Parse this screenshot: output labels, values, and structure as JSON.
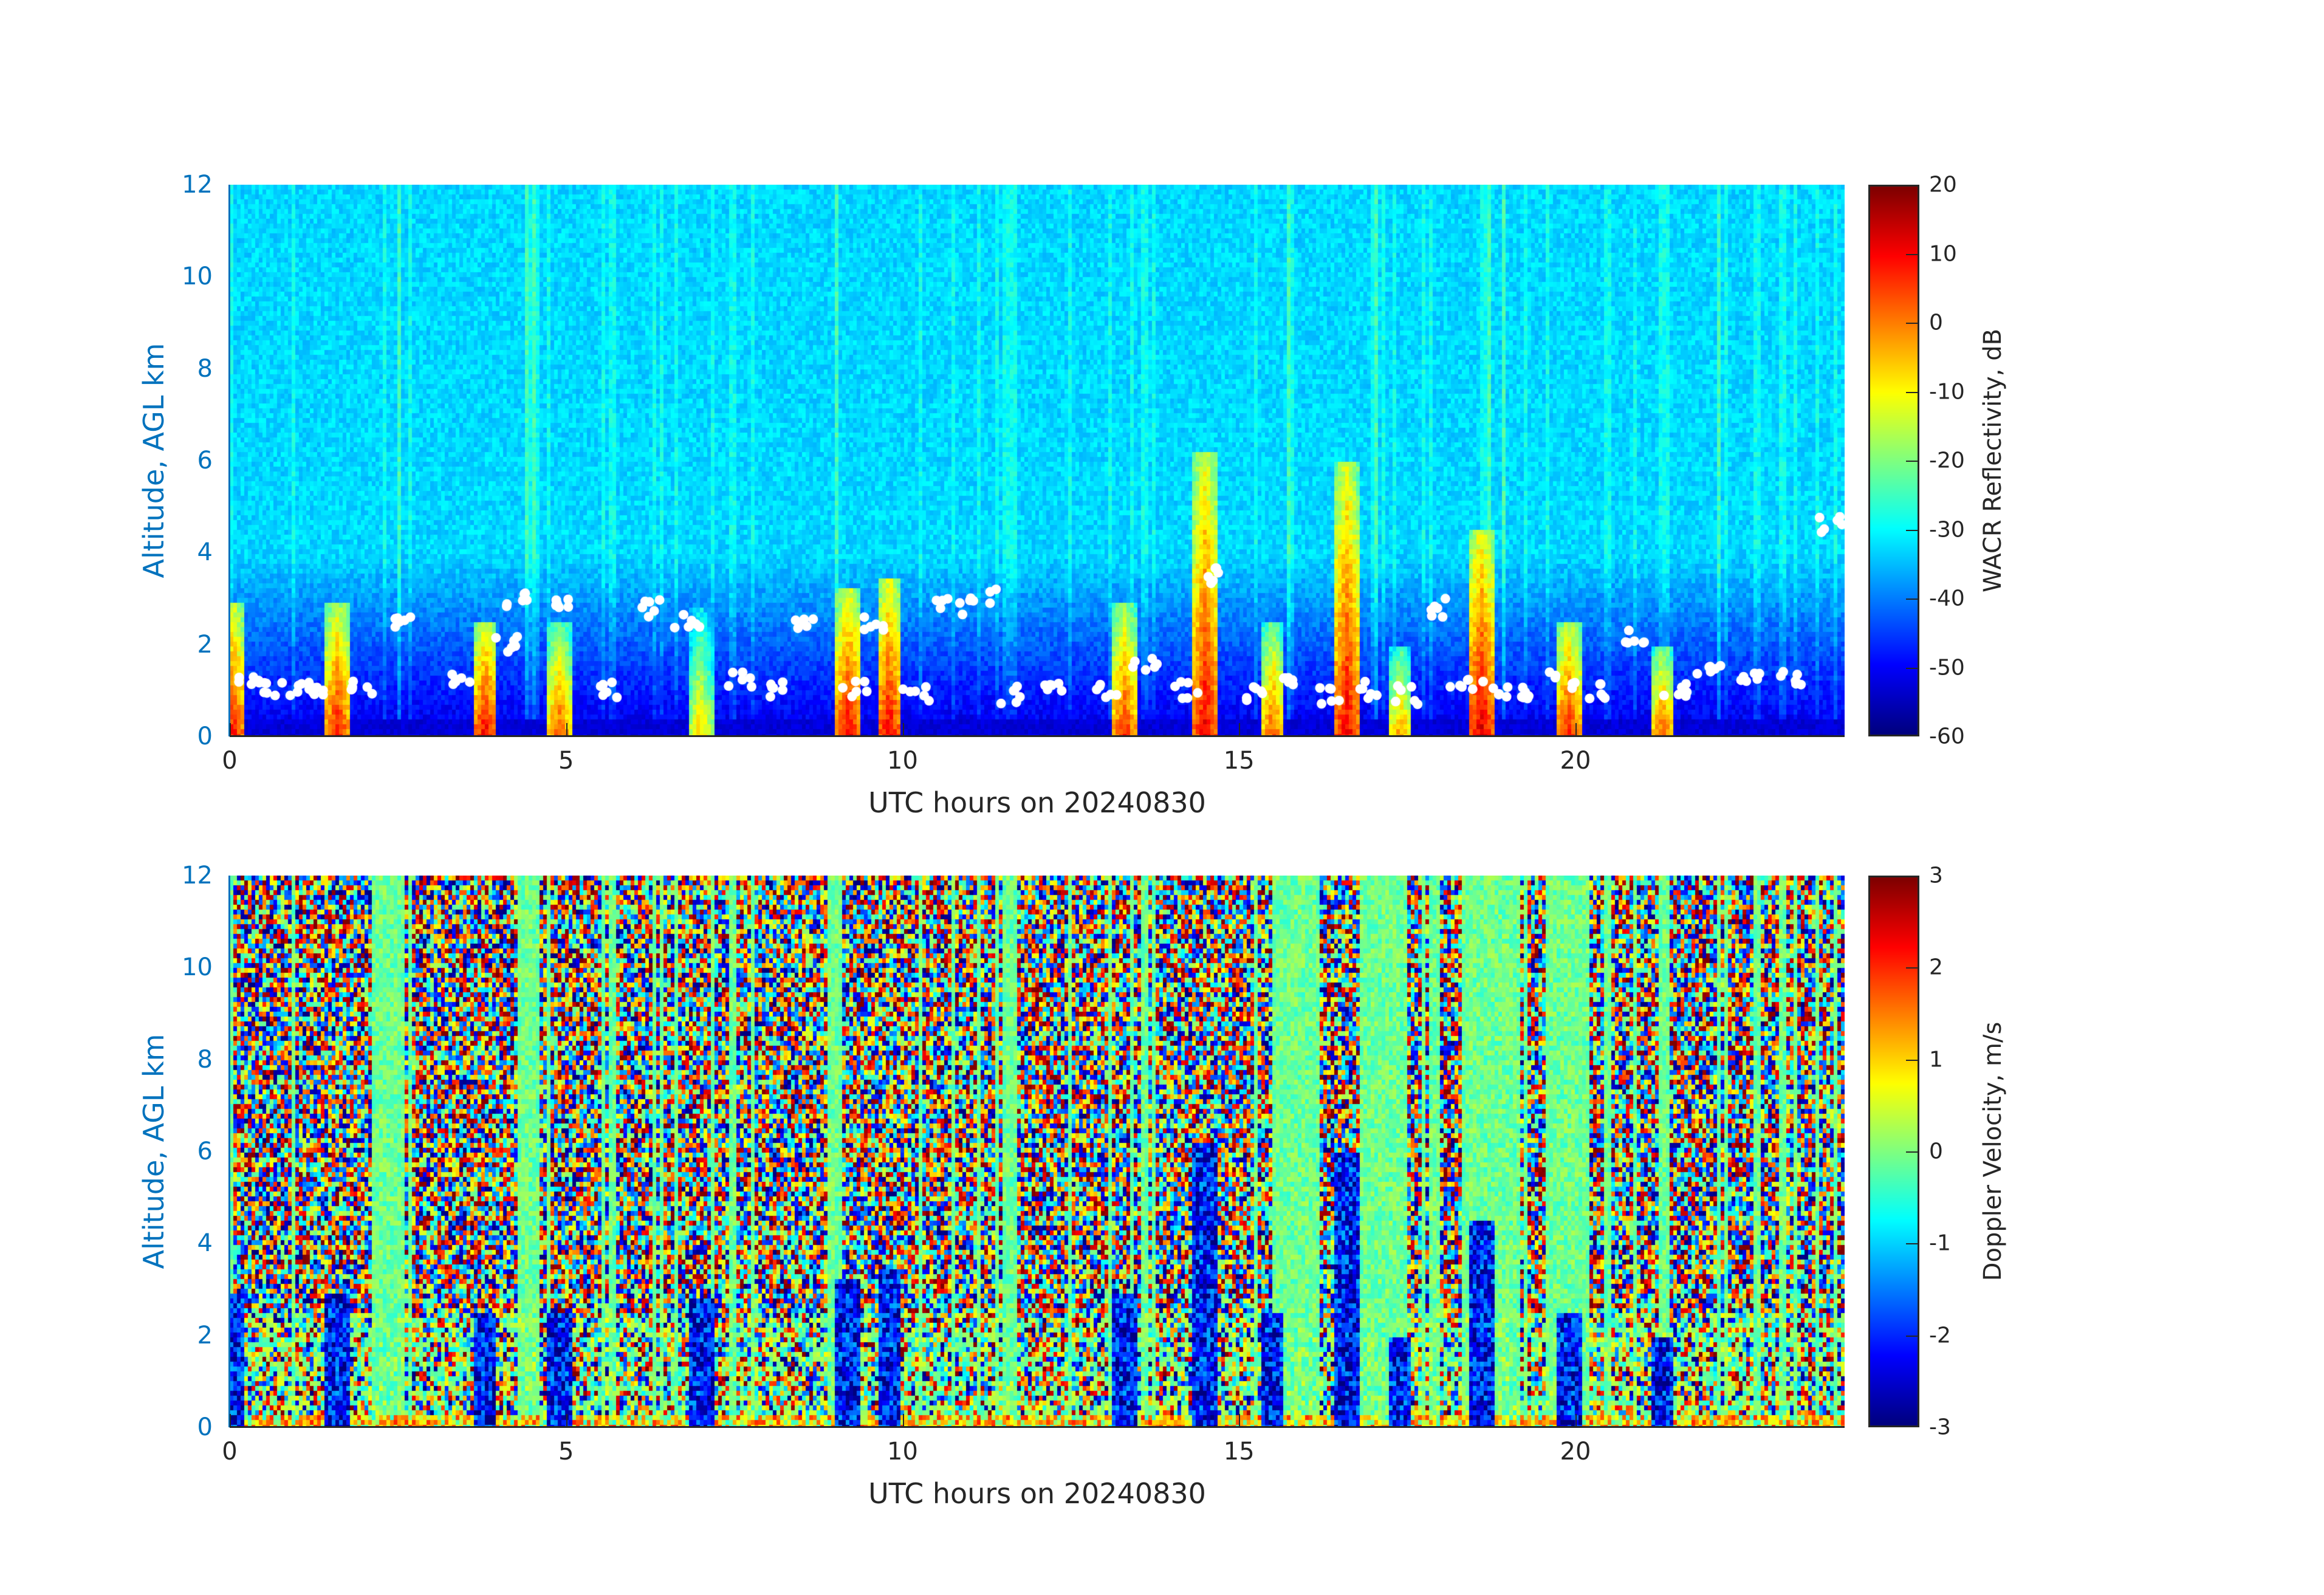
{
  "chart_data": [
    {
      "type": "heatmap",
      "xlabel": "UTC hours on 20240830",
      "ylabel": "Altitude, AGL km",
      "xlim": [
        0,
        24
      ],
      "ylim": [
        0,
        12
      ],
      "xticks": [
        "0",
        "5",
        "10",
        "15",
        "20"
      ],
      "yticks": [
        "0",
        "2",
        "4",
        "6",
        "8",
        "10",
        "12"
      ],
      "colorbar": {
        "label": "WACR Reflectivity, dB",
        "range": [
          -60,
          20
        ],
        "ticks": [
          "20",
          "10",
          "0",
          "-10",
          "-20",
          "-30",
          "-40",
          "-50",
          "-60"
        ],
        "colormap": "jet"
      },
      "background_noise_dB": -35,
      "precip_cells": [
        {
          "hour": 0.05,
          "top_km": 3.0,
          "max_dB": 10
        },
        {
          "hour": 1.6,
          "top_km": 3.0,
          "max_dB": 10
        },
        {
          "hour": 3.8,
          "top_km": 2.5,
          "max_dB": 12
        },
        {
          "hour": 4.9,
          "top_km": 2.5,
          "max_dB": 5
        },
        {
          "hour": 7.0,
          "top_km": 2.8,
          "max_dB": -5
        },
        {
          "hour": 9.2,
          "top_km": 3.3,
          "max_dB": 12
        },
        {
          "hour": 9.8,
          "top_km": 3.5,
          "max_dB": 12
        },
        {
          "hour": 13.3,
          "top_km": 3.0,
          "max_dB": 8
        },
        {
          "hour": 14.5,
          "top_km": 6.2,
          "max_dB": 12
        },
        {
          "hour": 15.5,
          "top_km": 2.5,
          "max_dB": 5
        },
        {
          "hour": 16.6,
          "top_km": 6.0,
          "max_dB": 12
        },
        {
          "hour": 17.4,
          "top_km": 2.0,
          "max_dB": 0
        },
        {
          "hour": 18.6,
          "top_km": 4.5,
          "max_dB": 14
        },
        {
          "hour": 19.9,
          "top_km": 2.5,
          "max_dB": 10
        },
        {
          "hour": 21.3,
          "top_km": 2.0,
          "max_dB": 5
        }
      ],
      "high_streaks_hours": [
        2.3,
        2.5,
        4.4,
        4.5,
        9.0,
        15.7,
        17.0,
        17.3,
        18.7,
        18.9,
        22.1
      ],
      "cloud_base_points": [
        [
          0.3,
          1.2
        ],
        [
          0.6,
          1.0
        ],
        [
          1.0,
          1.0
        ],
        [
          1.3,
          1.1
        ],
        [
          2.0,
          1.0
        ],
        [
          2.5,
          2.5
        ],
        [
          3.5,
          1.2
        ],
        [
          4.1,
          2.0
        ],
        [
          4.3,
          3.0
        ],
        [
          5.0,
          2.8
        ],
        [
          5.6,
          1.0
        ],
        [
          6.3,
          2.8
        ],
        [
          6.8,
          2.5
        ],
        [
          7.6,
          1.2
        ],
        [
          8.2,
          1.0
        ],
        [
          8.5,
          2.4
        ],
        [
          9.3,
          1.0
        ],
        [
          9.6,
          2.5
        ],
        [
          10.2,
          0.9
        ],
        [
          10.7,
          2.8
        ],
        [
          11.2,
          3.0
        ],
        [
          11.6,
          0.9
        ],
        [
          12.3,
          1.1
        ],
        [
          13.0,
          1.0
        ],
        [
          13.6,
          1.5
        ],
        [
          14.2,
          1.0
        ],
        [
          14.7,
          3.5
        ],
        [
          15.3,
          0.9
        ],
        [
          15.8,
          1.2
        ],
        [
          16.4,
          0.9
        ],
        [
          17.0,
          1.0
        ],
        [
          17.5,
          0.9
        ],
        [
          18.0,
          2.8
        ],
        [
          18.3,
          1.1
        ],
        [
          18.8,
          1.0
        ],
        [
          19.3,
          1.0
        ],
        [
          19.8,
          1.2
        ],
        [
          20.4,
          1.0
        ],
        [
          20.9,
          2.2
        ],
        [
          21.5,
          1.0
        ],
        [
          22.0,
          1.5
        ],
        [
          22.6,
          1.4
        ],
        [
          23.2,
          1.3
        ],
        [
          23.8,
          4.6
        ]
      ]
    },
    {
      "type": "heatmap",
      "xlabel": "UTC hours on 20240830",
      "ylabel": "Altitude, AGL km",
      "xlim": [
        0,
        24
      ],
      "ylim": [
        0,
        12
      ],
      "xticks": [
        "0",
        "5",
        "10",
        "15",
        "20"
      ],
      "yticks": [
        "0",
        "2",
        "4",
        "6",
        "8",
        "10",
        "12"
      ],
      "colorbar": {
        "label": "Doppler Velocity, m/s",
        "range": [
          -3,
          3
        ],
        "ticks": [
          "3",
          "2",
          "1",
          "0",
          "-1",
          "-2",
          "-3"
        ],
        "colormap": "jet"
      },
      "downdraft_cells_hours": [
        3.8,
        7.1,
        9.2,
        9.8,
        13.3,
        14.5,
        16.6,
        18.6,
        19.9
      ],
      "quiet_periods_hours": [
        [
          2.1,
          2.6
        ],
        [
          4.3,
          4.6
        ],
        [
          8.9,
          9.1
        ],
        [
          15.5,
          16.2
        ],
        [
          16.8,
          17.5
        ],
        [
          17.8,
          18.0
        ],
        [
          18.3,
          19.2
        ],
        [
          19.6,
          20.2
        ]
      ]
    }
  ]
}
